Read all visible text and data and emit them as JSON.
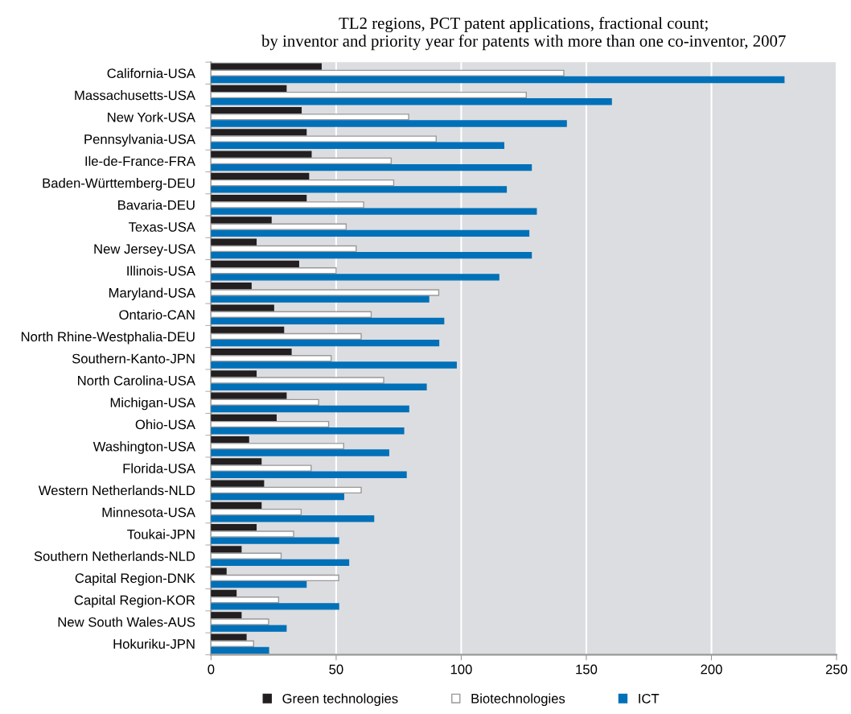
{
  "chart_data": {
    "type": "bar",
    "orientation": "horizontal",
    "title": "TL2 regions, PCT patent applications, fractional count;\nby inventor and priority year for patents with more than one co-inventor, 2007",
    "categories": [
      "California-USA",
      "Massachusetts-USA",
      "New York-USA",
      "Pennsylvania-USA",
      "Ile-de-France-FRA",
      "Baden-Württemberg-DEU",
      "Bavaria-DEU",
      "Texas-USA",
      "New Jersey-USA",
      "Illinois-USA",
      "Maryland-USA",
      "Ontario-CAN",
      "North Rhine-Westphalia-DEU",
      "Southern-Kanto-JPN",
      "North Carolina-USA",
      "Michigan-USA",
      "Ohio-USA",
      "Washington-USA",
      "Florida-USA",
      "Western Netherlands-NLD",
      "Minnesota-USA",
      "Toukai-JPN",
      "Southern Netherlands-NLD",
      "Capital Region-DNK",
      "Capital Region-KOR",
      "New South Wales-AUS",
      "Hokuriku-JPN"
    ],
    "series": [
      {
        "name": "Green technologies",
        "color": "#231f20",
        "values": [
          44,
          30,
          36,
          38,
          40,
          39,
          38,
          24,
          18,
          35,
          16,
          25,
          29,
          32,
          18,
          30,
          26,
          15,
          20,
          21,
          20,
          18,
          12,
          6,
          10,
          12,
          14
        ]
      },
      {
        "name": "Biotechnologies",
        "color": "#ffffff",
        "values": [
          141,
          126,
          79,
          90,
          72,
          73,
          61,
          54,
          58,
          50,
          91,
          64,
          60,
          48,
          69,
          43,
          47,
          53,
          40,
          60,
          36,
          33,
          28,
          51,
          27,
          23,
          17
        ]
      },
      {
        "name": "ICT",
        "color": "#0070b8",
        "values": [
          229,
          160,
          142,
          117,
          128,
          118,
          130,
          127,
          128,
          115,
          87,
          93,
          91,
          98,
          86,
          79,
          77,
          71,
          78,
          53,
          65,
          51,
          55,
          38,
          51,
          30,
          23
        ]
      }
    ],
    "xlim": [
      0,
      250
    ],
    "xticks": [
      0,
      50,
      100,
      150,
      200,
      250
    ],
    "grid": "x",
    "legend": "bottom"
  }
}
